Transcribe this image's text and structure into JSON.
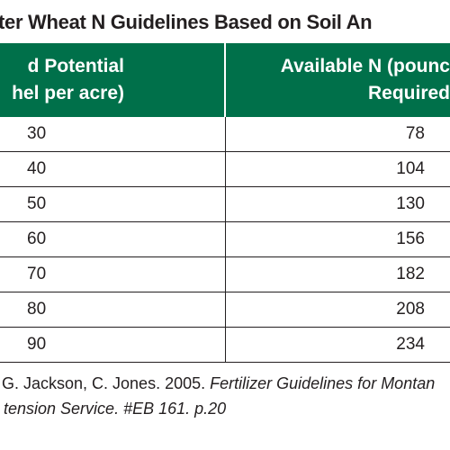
{
  "title": "ter Wheat N Guidelines Based on Soil An",
  "table": {
    "headers": [
      [
        "d Potential",
        "hel per acre)"
      ],
      [
        "Available N (pounc",
        "Required"
      ]
    ],
    "rows": [
      [
        "30",
        "78"
      ],
      [
        "40",
        "104"
      ],
      [
        "50",
        "130"
      ],
      [
        "60",
        "156"
      ],
      [
        "70",
        "182"
      ],
      [
        "80",
        "208"
      ],
      [
        "90",
        "234"
      ]
    ]
  },
  "citation": {
    "line1_plain": ", G. Jackson, C. Jones. 2005. ",
    "line1_italic": "Fertilizer Guidelines for Montan",
    "line2": "tension Service. #EB 161. p.20"
  }
}
